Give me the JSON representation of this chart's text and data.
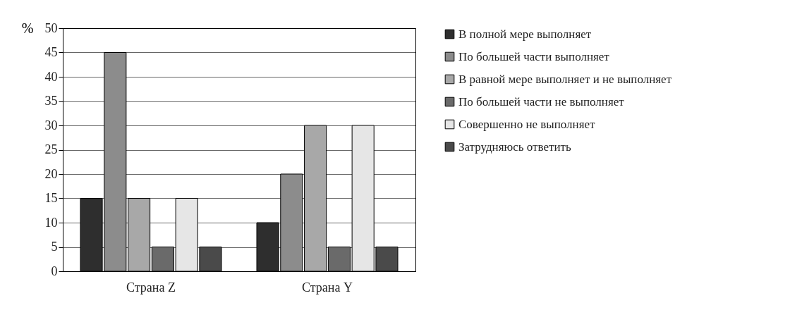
{
  "chart_data": {
    "type": "bar",
    "ylabel": "%",
    "categories": [
      "Страна Z",
      "Страна Y"
    ],
    "series": [
      {
        "name": "В полной мере выполняет",
        "color": "#2e2e2e",
        "values": [
          15,
          10
        ]
      },
      {
        "name": "По большей части выполняет",
        "color": "#8c8c8c",
        "values": [
          45,
          20
        ]
      },
      {
        "name": "В равной мере выполняет и не выполняет",
        "color": "#a8a8a8",
        "values": [
          15,
          30
        ]
      },
      {
        "name": "По большей части не выполняет",
        "color": "#6a6a6a",
        "values": [
          5,
          5
        ]
      },
      {
        "name": "Совершенно не выполняет",
        "color": "#e6e6e6",
        "values": [
          15,
          30
        ]
      },
      {
        "name": "Затрудняюсь ответить",
        "color": "#4a4a4a",
        "values": [
          5,
          5
        ]
      }
    ],
    "ylim": [
      0,
      50
    ],
    "yticks": [
      0,
      5,
      10,
      15,
      20,
      25,
      30,
      35,
      40,
      45,
      50
    ],
    "grid": "y",
    "legend": "right"
  }
}
